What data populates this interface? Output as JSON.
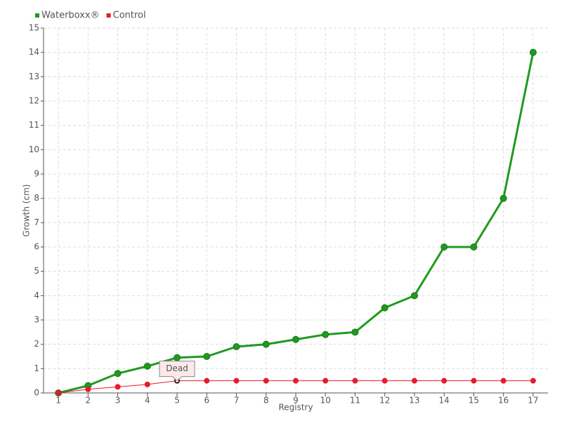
{
  "chart_data": {
    "type": "line",
    "x_label": "Registry",
    "y_label": "Growth (cm)",
    "categories": [
      "1",
      "2",
      "3",
      "4",
      "5",
      "6",
      "7",
      "8",
      "9",
      "10",
      "11",
      "12",
      "13",
      "14",
      "15",
      "16",
      "17"
    ],
    "series": [
      {
        "name": "Waterboxx®",
        "color": "#1f9a1f",
        "values": [
          0,
          0.3,
          0.8,
          1.1,
          1.45,
          1.5,
          1.9,
          2.0,
          2.2,
          2.4,
          2.5,
          3.5,
          4.0,
          6,
          6,
          8,
          14
        ]
      },
      {
        "name": "Control",
        "color": "#e8192c",
        "values": [
          0,
          0.15,
          0.25,
          0.35,
          0.5,
          0.5,
          0.5,
          0.5,
          0.5,
          0.5,
          0.5,
          0.5,
          0.5,
          0.5,
          0.5,
          0.5,
          0.5
        ]
      }
    ],
    "annotations": [
      {
        "text": "Dead",
        "series": "Control",
        "category": "5"
      }
    ],
    "ylim": [
      0,
      15
    ],
    "yticks": [
      0,
      1,
      2,
      3,
      4,
      5,
      6,
      7,
      8,
      9,
      10,
      11,
      12,
      13,
      14,
      15
    ],
    "grid": true,
    "legend": "top-left"
  }
}
